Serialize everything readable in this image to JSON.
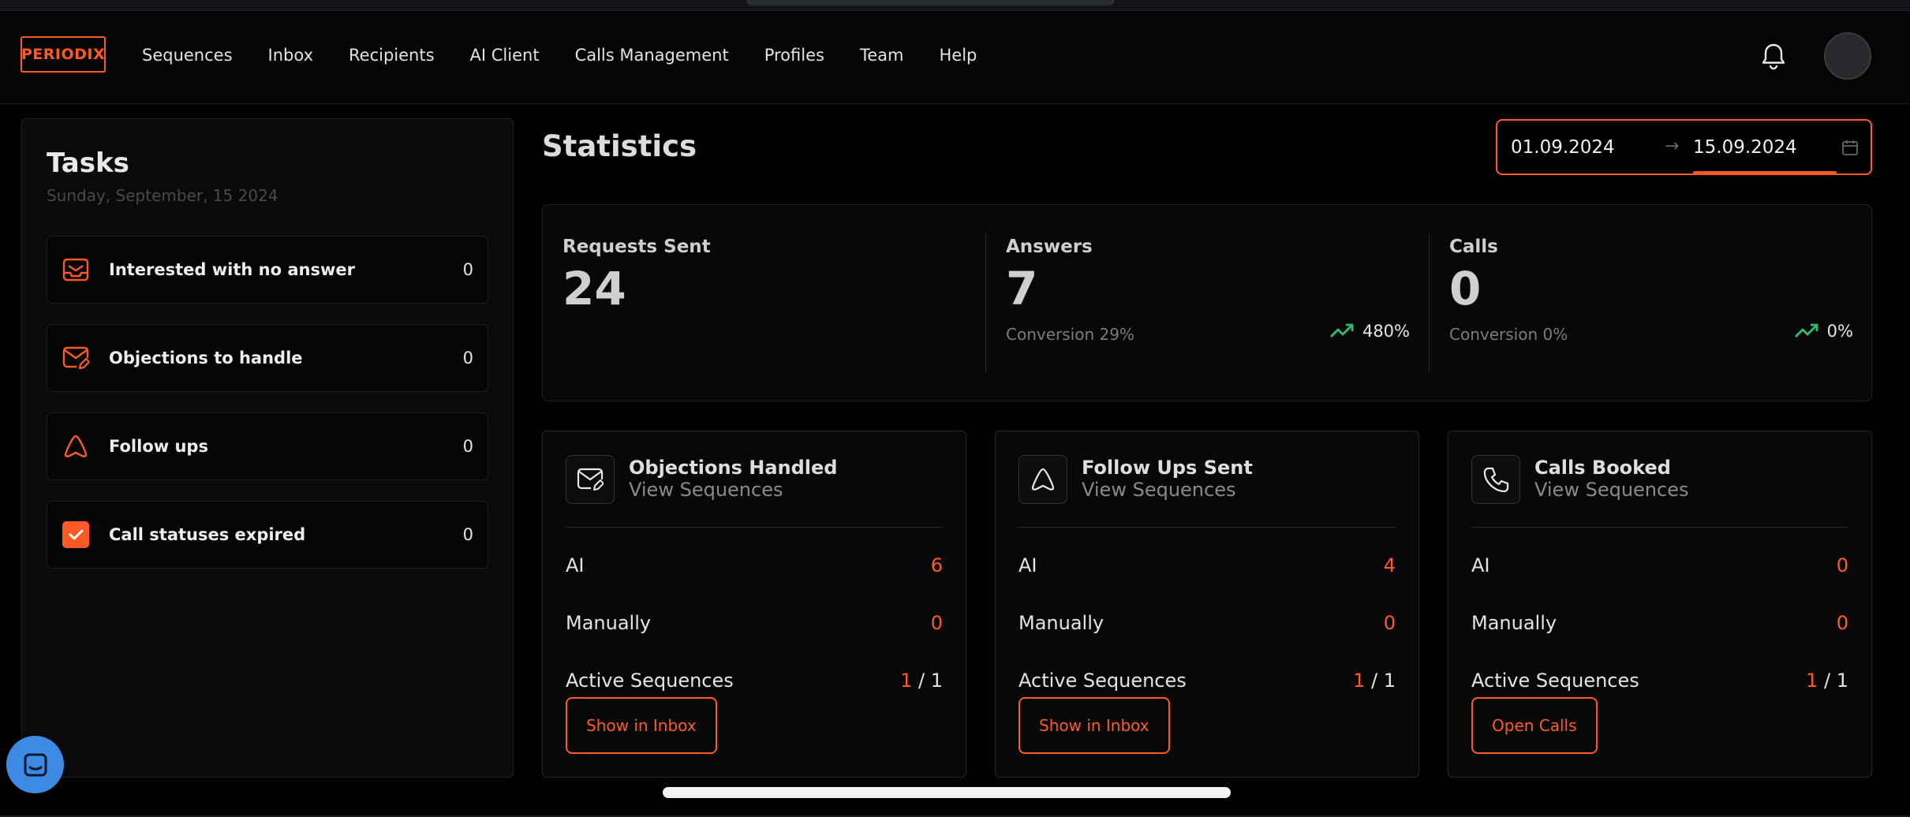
{
  "brand": {
    "logo_text": "PERIODIX"
  },
  "nav": {
    "items": [
      "Sequences",
      "Inbox",
      "Recipients",
      "AI Client",
      "Calls Management",
      "Profiles",
      "Team",
      "Help"
    ]
  },
  "header_icons": {
    "notifications": "bell-icon",
    "user": "avatar"
  },
  "tasks": {
    "title": "Tasks",
    "date": "Sunday, September, 15 2024",
    "items": [
      {
        "label": "Interested with no answer",
        "count": "0",
        "icon": "inbox-tray-icon"
      },
      {
        "label": "Objections to handle",
        "count": "0",
        "icon": "mail-edit-icon"
      },
      {
        "label": "Follow ups",
        "count": "0",
        "icon": "triangle-icon"
      },
      {
        "label": "Call statuses expired",
        "count": "0",
        "icon": "checkbox-icon"
      }
    ]
  },
  "statistics": {
    "title": "Statistics",
    "date_from": "01.09.2024",
    "date_to": "15.09.2024",
    "date_arrow": "→",
    "kpis": [
      {
        "label": "Requests Sent",
        "value": "24"
      },
      {
        "label": "Answers",
        "value": "7",
        "conversion": "Conversion 29%",
        "trend": "480%"
      },
      {
        "label": "Calls",
        "value": "0",
        "conversion": "Conversion 0%",
        "trend": "0%"
      }
    ]
  },
  "cards": [
    {
      "title": "Objections Handled",
      "link": "View Sequences",
      "icon": "mail-edit-icon",
      "ai_label": "AI",
      "ai_value": "6",
      "manual_label": "Manually",
      "manual_value": "0",
      "active_label": "Active Sequences",
      "active_value": "1",
      "active_total": " / 1",
      "button": "Show in Inbox"
    },
    {
      "title": "Follow Ups Sent",
      "link": "View Sequences",
      "icon": "triangle-icon",
      "ai_label": "AI",
      "ai_value": "4",
      "manual_label": "Manually",
      "manual_value": "0",
      "active_label": "Active Sequences",
      "active_value": "1",
      "active_total": " / 1",
      "button": "Show in Inbox"
    },
    {
      "title": "Calls Booked",
      "link": "View Sequences",
      "icon": "phone-icon",
      "ai_label": "AI",
      "ai_value": "0",
      "manual_label": "Manually",
      "manual_value": "0",
      "active_label": "Active Sequences",
      "active_value": "1",
      "active_total": " / 1",
      "button": "Open Calls"
    }
  ],
  "colors": {
    "accent": "#ff5a26",
    "trend_up": "#2fbf71",
    "chat": "#3c8ae3"
  }
}
